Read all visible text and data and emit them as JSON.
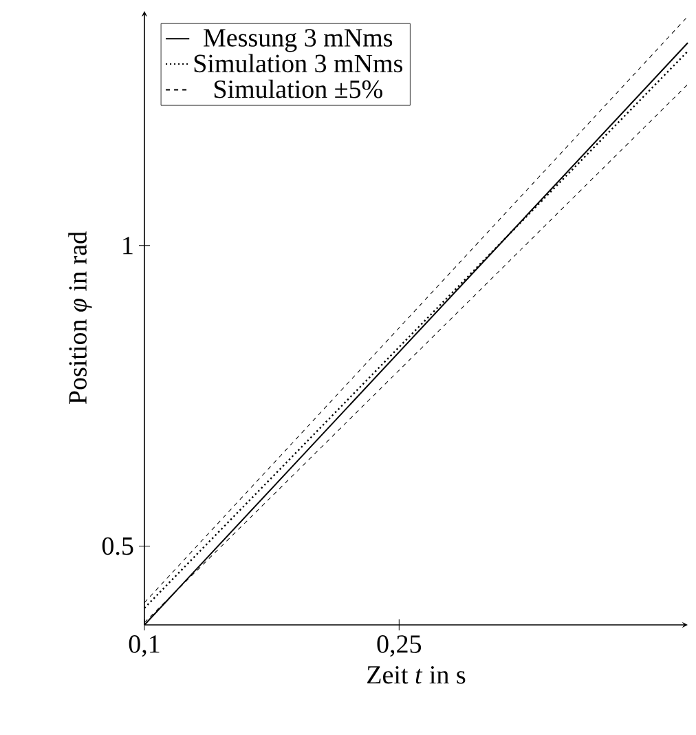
{
  "chart_data": {
    "type": "line",
    "xlabel": "Zeit *t* in s",
    "ylabel": "Position *φ* in rad",
    "xlim": [
      0.1,
      0.42
    ],
    "ylim": [
      0.369,
      1.39
    ],
    "xticks": [
      {
        "value": 0.1,
        "label": "0,1"
      },
      {
        "value": 0.25,
        "label": "0,25"
      }
    ],
    "yticks": [
      0.5,
      1
    ],
    "grid": false,
    "legend": "top left",
    "x": [
      0.1,
      0.42
    ],
    "series": [
      {
        "name": "Messung 3 mNms",
        "color": "#000000",
        "line_style": "solid",
        "values": [
          0.369,
          1.337
        ]
      },
      {
        "name": "Simulation 3 mNms",
        "color": "#000000",
        "line_style": "dotted",
        "values": [
          0.397,
          1.323
        ]
      },
      {
        "name": "Simulation ±5%",
        "color": "#000000",
        "line_style": "dashed",
        "values": [
          0.406,
          1.381
        ]
      },
      {
        "color": "#000000",
        "line_style": "dashed",
        "values": [
          0.373,
          1.268
        ]
      }
    ]
  }
}
